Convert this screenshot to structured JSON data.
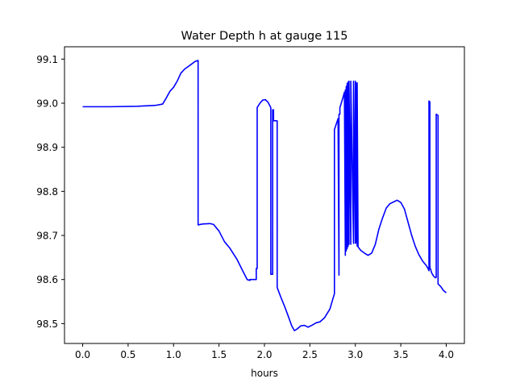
{
  "chart_data": {
    "type": "line",
    "title": "Water Depth h at gauge 115",
    "xlabel": "hours",
    "ylabel": "",
    "xlim": [
      -0.2,
      4.2
    ],
    "ylim": [
      98.455,
      99.128
    ],
    "x_ticks": [
      0.0,
      0.5,
      1.0,
      1.5,
      2.0,
      2.5,
      3.0,
      3.5,
      4.0
    ],
    "x_tick_labels": [
      "0.0",
      "0.5",
      "1.0",
      "1.5",
      "2.0",
      "2.5",
      "3.0",
      "3.5",
      "4.0"
    ],
    "y_ticks": [
      98.5,
      98.6,
      98.7,
      98.8,
      98.9,
      99.0,
      99.1
    ],
    "y_tick_labels": [
      "98.5",
      "98.6",
      "98.7",
      "98.8",
      "98.9",
      "99.0",
      "99.1"
    ],
    "grid": false,
    "legend": "none",
    "series": [
      {
        "color": "#0000ff",
        "x": [
          0.0,
          0.3,
          0.6,
          0.8,
          0.88,
          0.92,
          0.96,
          1.0,
          1.04,
          1.08,
          1.12,
          1.16,
          1.2,
          1.24,
          1.27,
          1.27,
          1.32,
          1.4,
          1.44,
          1.5,
          1.56,
          1.62,
          1.7,
          1.76,
          1.81,
          1.84,
          1.84,
          1.91,
          1.91,
          1.92,
          1.92,
          1.95,
          1.98,
          2.01,
          2.04,
          2.07,
          2.07,
          2.09,
          2.09,
          2.1,
          2.1,
          2.14,
          2.14,
          2.18,
          2.22,
          2.26,
          2.3,
          2.33,
          2.36,
          2.4,
          2.44,
          2.48,
          2.52,
          2.57,
          2.61,
          2.66,
          2.72,
          2.77,
          2.77,
          2.81,
          2.82,
          2.82,
          2.83,
          2.83,
          2.86,
          2.88,
          2.89,
          2.89,
          2.9,
          2.9,
          2.91,
          2.91,
          2.92,
          2.92,
          2.93,
          2.93,
          2.95,
          2.95,
          2.98,
          2.98,
          3.0,
          3.0,
          3.01,
          3.01,
          3.02,
          3.02,
          3.03,
          3.03,
          3.06,
          3.1,
          3.14,
          3.18,
          3.22,
          3.26,
          3.3,
          3.34,
          3.38,
          3.42,
          3.46,
          3.5,
          3.54,
          3.58,
          3.62,
          3.66,
          3.7,
          3.74,
          3.78,
          3.8,
          3.81,
          3.81,
          3.82,
          3.82,
          3.83,
          3.84,
          3.86,
          3.88,
          3.89,
          3.89,
          3.91,
          3.91,
          3.94,
          3.97,
          4.0
        ],
        "y": [
          98.992,
          98.992,
          98.993,
          98.995,
          98.998,
          99.012,
          99.027,
          99.036,
          99.05,
          99.068,
          99.077,
          99.083,
          99.089,
          99.095,
          99.097,
          98.724,
          98.726,
          98.727,
          98.725,
          98.71,
          98.686,
          98.671,
          98.645,
          98.62,
          98.6,
          98.598,
          98.6,
          98.6,
          98.625,
          98.625,
          98.99,
          99.0,
          99.007,
          99.008,
          99.002,
          98.99,
          98.612,
          98.612,
          98.985,
          98.985,
          98.96,
          98.96,
          98.582,
          98.56,
          98.54,
          98.518,
          98.495,
          98.484,
          98.488,
          98.495,
          98.496,
          98.492,
          98.496,
          98.502,
          98.504,
          98.513,
          98.533,
          98.568,
          98.94,
          98.965,
          98.61,
          98.975,
          98.975,
          98.99,
          99.01,
          99.025,
          98.655,
          99.03,
          98.665,
          99.038,
          98.67,
          99.045,
          98.675,
          99.048,
          98.68,
          99.05,
          98.68,
          99.05,
          98.682,
          99.05,
          98.682,
          99.05,
          98.684,
          99.046,
          98.676,
          99.046,
          98.674,
          98.674,
          98.666,
          98.66,
          98.655,
          98.66,
          98.68,
          98.715,
          98.74,
          98.762,
          98.772,
          98.776,
          98.78,
          98.775,
          98.76,
          98.73,
          98.7,
          98.675,
          98.656,
          98.642,
          98.632,
          98.625,
          98.62,
          99.005,
          99.003,
          98.628,
          98.622,
          98.615,
          98.608,
          98.604,
          98.605,
          98.975,
          98.972,
          98.59,
          98.584,
          98.575,
          98.57
        ]
      }
    ]
  }
}
